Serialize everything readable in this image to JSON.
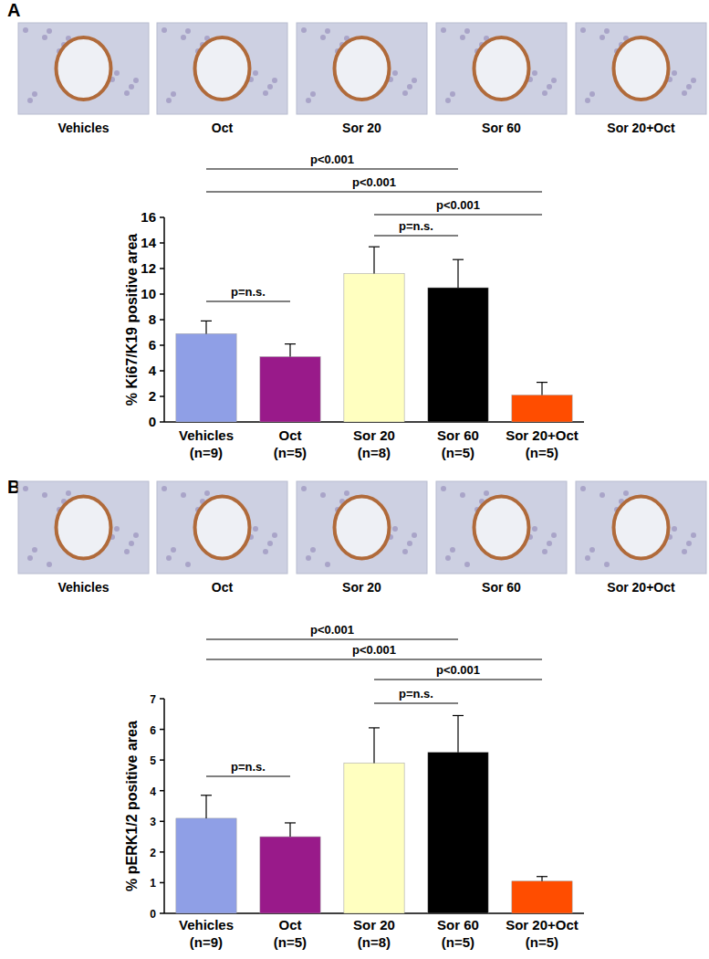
{
  "chart_data": [
    {
      "type": "bar",
      "panel_label": "A",
      "image_labels": [
        "Vehicles",
        "Oct",
        "Sor 20",
        "Sor 60",
        "Sor 20+Oct"
      ],
      "categories": [
        "Vehicles (n=9)",
        "Oct (n=5)",
        "Sor 20 (n=8)",
        "Sor 60 (n=5)",
        "Sor 20+Oct (n=5)"
      ],
      "values": [
        6.9,
        5.1,
        11.6,
        10.5,
        2.1
      ],
      "errors": [
        1.0,
        1.0,
        2.1,
        2.2,
        1.0
      ],
      "colors": [
        "#8f9fe6",
        "#991a8a",
        "#ffffc0",
        "#000000",
        "#ff4d00"
      ],
      "ylabel": "% Ki67/K19  positive area",
      "ylim": [
        0,
        16
      ],
      "yticks": [
        0,
        2,
        4,
        6,
        8,
        10,
        12,
        14,
        16
      ],
      "annotations": [
        {
          "from": 0,
          "to": 3,
          "label": "p<0.001"
        },
        {
          "from": 0,
          "to": 4,
          "label": "p<0.001"
        },
        {
          "from": 2,
          "to": 4,
          "label": "p<0.001"
        },
        {
          "from": 2,
          "to": 3,
          "label": "p=n.s."
        },
        {
          "from": 0,
          "to": 1,
          "label": "p=n.s."
        }
      ]
    },
    {
      "type": "bar",
      "panel_label": "B",
      "image_labels": [
        "Vehicles",
        "Oct",
        "Sor 20",
        "Sor 60",
        "Sor 20+Oct"
      ],
      "categories": [
        "Vehicles (n=9)",
        "Oct (n=5)",
        "Sor 20 (n=8)",
        "Sor 60 (n=5)",
        "Sor 20+Oct (n=5)"
      ],
      "values": [
        3.1,
        2.5,
        4.9,
        5.25,
        1.05
      ],
      "errors": [
        0.75,
        0.45,
        1.15,
        1.2,
        0.15
      ],
      "colors": [
        "#8f9fe6",
        "#991a8a",
        "#ffffc0",
        "#000000",
        "#ff4d00"
      ],
      "ylabel": "% pERK1/2 positive area",
      "ylim": [
        0,
        7
      ],
      "yticks": [
        0,
        1,
        2,
        3,
        4,
        5,
        6,
        7
      ],
      "annotations": [
        {
          "from": 0,
          "to": 3,
          "label": "p<0.001"
        },
        {
          "from": 0,
          "to": 4,
          "label": "p<0.001"
        },
        {
          "from": 2,
          "to": 4,
          "label": "p<0.001"
        },
        {
          "from": 2,
          "to": 3,
          "label": "p=n.s."
        },
        {
          "from": 0,
          "to": 1,
          "label": "p=n.s."
        }
      ]
    }
  ]
}
